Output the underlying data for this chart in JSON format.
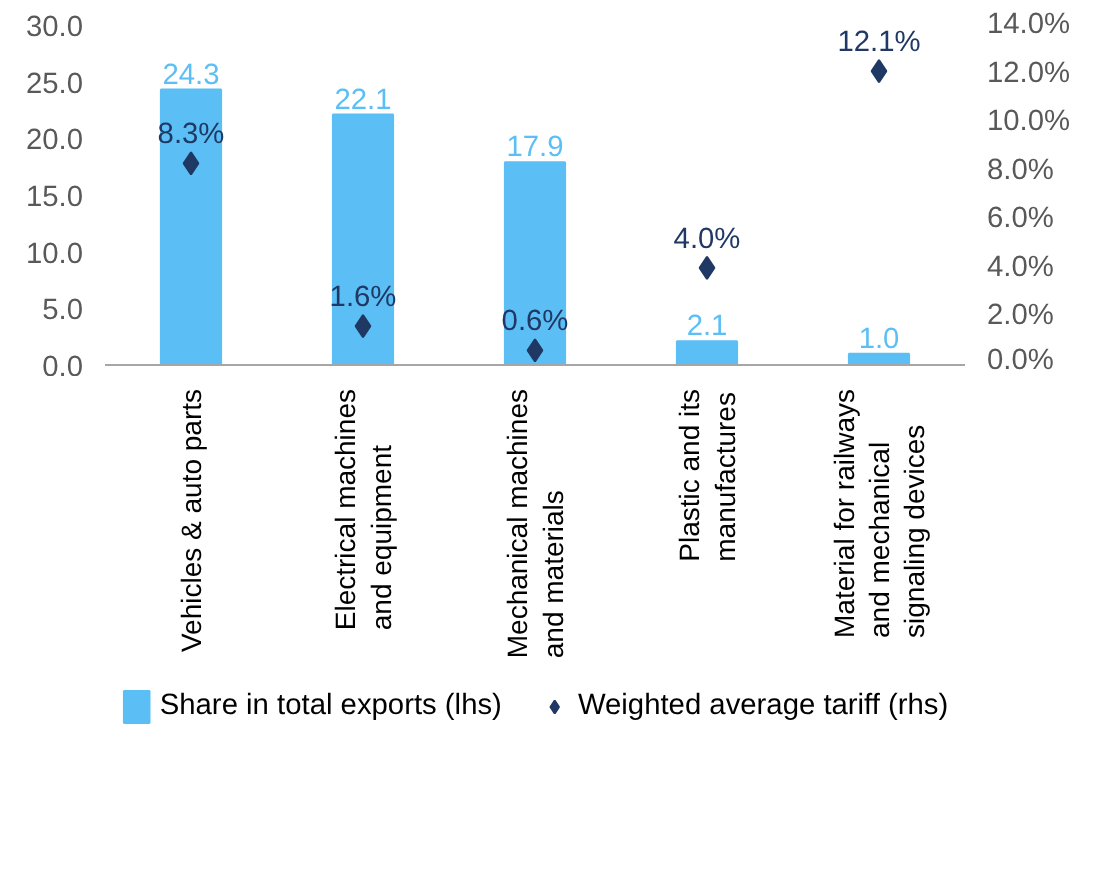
{
  "chart_data": {
    "type": "bar",
    "categories": [
      "Vehicles & auto parts",
      "Electrical machines and equipment",
      "Mechanical machines and materials",
      "Plastic and its manufactures",
      "Material for railways and mechanical signaling devices"
    ],
    "series": [
      {
        "name": "Share in total exports (lhs)",
        "type": "bar",
        "color": "#5bbff5",
        "values": [
          24.3,
          22.1,
          17.9,
          2.1,
          1.0
        ],
        "value_labels": [
          "24.3",
          "22.1",
          "17.9",
          "2.1",
          "1.0"
        ]
      },
      {
        "name": "Weighted average tariff (rhs)",
        "type": "scatter",
        "axis": "y2",
        "marker": "diamond",
        "color": "#1f3864",
        "values": [
          8.3,
          1.6,
          0.6,
          4.0,
          12.1
        ],
        "value_labels": [
          "8.3%",
          "1.6%",
          "0.6%",
          "4.0%",
          "12.1%"
        ]
      }
    ],
    "ylim": [
      0,
      30
    ],
    "yticks": [
      {
        "value": 0,
        "label": "0.0"
      },
      {
        "value": 5,
        "label": "5.0"
      },
      {
        "value": 10,
        "label": "10.0"
      },
      {
        "value": 15,
        "label": "15.0"
      },
      {
        "value": 20,
        "label": "20.0"
      },
      {
        "value": 25,
        "label": "25.0"
      },
      {
        "value": 30,
        "label": "30.0"
      }
    ],
    "y2lim": [
      0,
      14
    ],
    "y2ticks": [
      {
        "value": 0,
        "label": "0.0%"
      },
      {
        "value": 2,
        "label": "2.0%"
      },
      {
        "value": 4,
        "label": "4.0%"
      },
      {
        "value": 6,
        "label": "6.0%"
      },
      {
        "value": 8,
        "label": "8.0%"
      },
      {
        "value": 10,
        "label": "10.0%"
      },
      {
        "value": 12,
        "label": "12.0%"
      },
      {
        "value": 14,
        "label": "14.0%"
      }
    ],
    "grid": false,
    "legend": "bottom"
  }
}
